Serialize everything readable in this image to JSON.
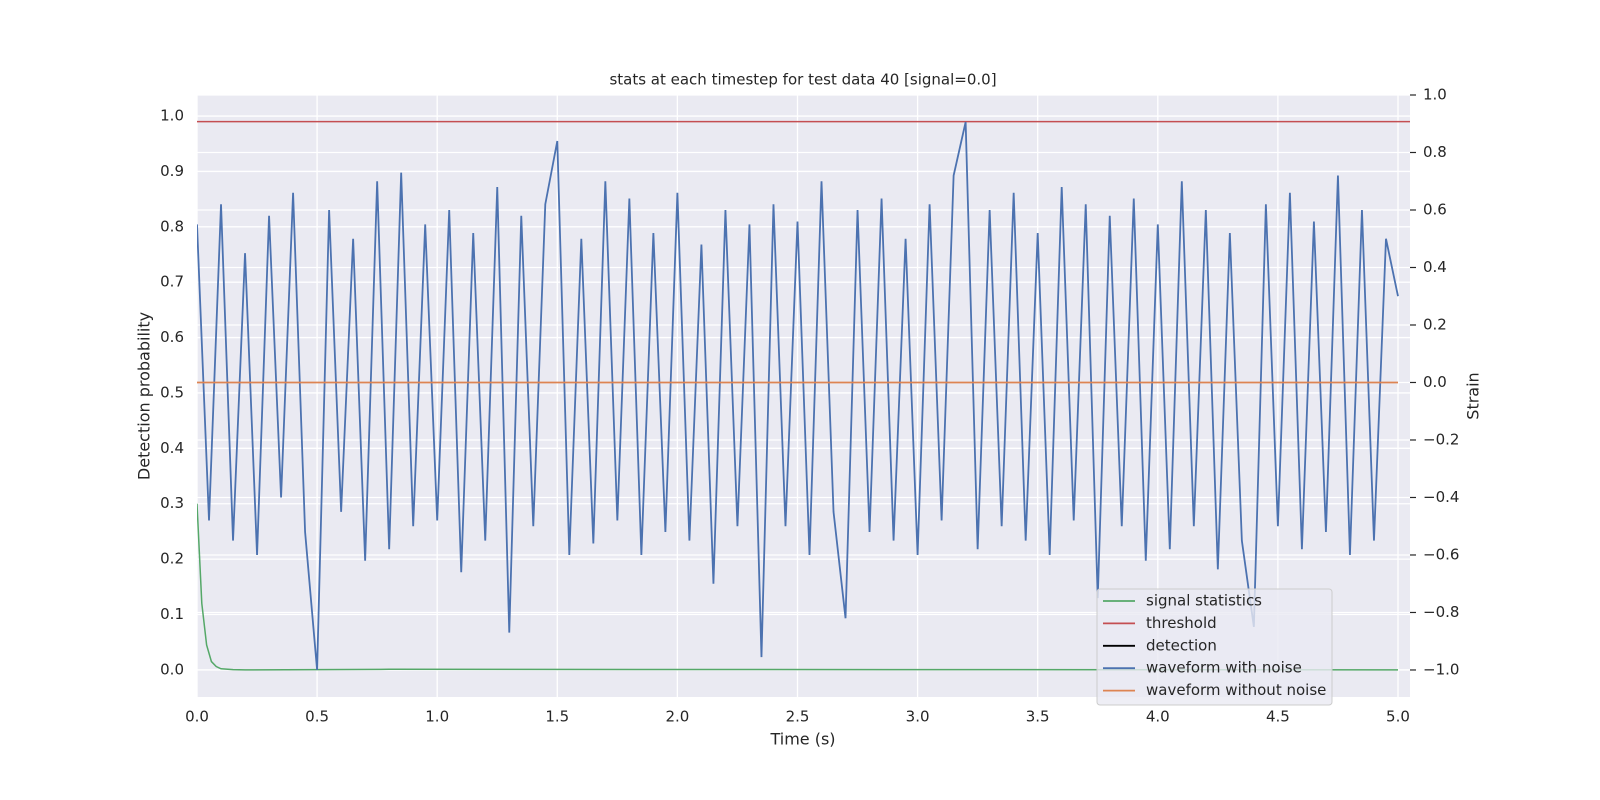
{
  "chart_data": {
    "type": "line",
    "title": "stats at each timestep for test data 40 [signal=0.0]",
    "x_label": "Time (s)",
    "y_label": "Detection probability",
    "y2_label": "Strain",
    "xlim": [
      0,
      5.05
    ],
    "ylim": [
      -0.049,
      1.038
    ],
    "y2lim": [
      -1.094,
      1.0
    ],
    "xticks": [
      {
        "value": 0,
        "label": "0.0"
      },
      0.5,
      {
        "value": 1,
        "label": "1.0"
      },
      1.5,
      {
        "value": 2,
        "label": "2.0"
      },
      2.5,
      {
        "value": 3,
        "label": "3.0"
      },
      3.5,
      {
        "value": 4,
        "label": "4.0"
      },
      4.5,
      {
        "value": 5,
        "label": "5.0"
      }
    ],
    "yticks": [
      {
        "value": 0,
        "label": "0.0"
      },
      0.1,
      0.2,
      0.3,
      0.4,
      0.5,
      0.6,
      0.7,
      0.8,
      0.9,
      {
        "value": 1,
        "label": "1.0"
      }
    ],
    "y2ticks": [
      {
        "value": -1,
        "label": "−1.0"
      },
      {
        "value": -0.8,
        "label": "−0.8"
      },
      {
        "value": -0.6,
        "label": "−0.6"
      },
      {
        "value": -0.4,
        "label": "−0.4"
      },
      {
        "value": -0.2,
        "label": "−0.2"
      },
      {
        "value": 0,
        "label": "0.0"
      },
      0.2,
      0.4,
      0.6,
      0.8,
      {
        "value": 1,
        "label": "1.0"
      }
    ],
    "grid": true,
    "legend": "lower right",
    "series": [
      {
        "name": "signal statistics",
        "color": "#55a868",
        "x": [
          0,
          0.02,
          0.04,
          0.06,
          0.08,
          0.1,
          0.15,
          0.2,
          0.8,
          5.0
        ],
        "values": [
          0.3,
          0.12,
          0.045,
          0.015,
          0.006,
          0.002,
          0.0005,
          0,
          0.001,
          0
        ]
      },
      {
        "name": "threshold",
        "color": "#c44e52",
        "x": [
          0,
          5.05
        ],
        "values": [
          0.99,
          0.99
        ]
      },
      {
        "name": "detection",
        "color": "#000000",
        "x": [],
        "values": []
      },
      {
        "name": "waveform with noise",
        "color": "#4c72b0",
        "axis": "y2",
        "x": [
          0,
          0.05,
          0.1,
          0.15,
          0.2,
          0.25,
          0.3,
          0.35,
          0.4,
          0.45,
          0.5,
          0.55,
          0.6,
          0.65,
          0.7,
          0.75,
          0.8,
          0.85,
          0.9,
          0.95,
          1.0,
          1.05,
          1.1,
          1.15,
          1.2,
          1.25,
          1.3,
          1.35,
          1.4,
          1.45,
          1.5,
          1.55,
          1.6,
          1.65,
          1.7,
          1.75,
          1.8,
          1.85,
          1.9,
          1.95,
          2.0,
          2.05,
          2.1,
          2.15,
          2.2,
          2.25,
          2.3,
          2.35,
          2.4,
          2.45,
          2.5,
          2.55,
          2.6,
          2.65,
          2.7,
          2.75,
          2.8,
          2.85,
          2.9,
          2.95,
          3.0,
          3.05,
          3.1,
          3.15,
          3.2,
          3.25,
          3.3,
          3.35,
          3.4,
          3.45,
          3.5,
          3.55,
          3.6,
          3.65,
          3.7,
          3.75,
          3.8,
          3.85,
          3.9,
          3.95,
          4.0,
          4.05,
          4.1,
          4.15,
          4.2,
          4.25,
          4.3,
          4.35,
          4.4,
          4.45,
          4.5,
          4.55,
          4.6,
          4.65,
          4.7,
          4.75,
          4.8,
          4.85,
          4.9,
          4.95,
          5.0
        ],
        "values": [
          0.55,
          -0.48,
          0.62,
          -0.55,
          0.45,
          -0.6,
          0.58,
          -0.4,
          0.66,
          -0.52,
          -1.0,
          0.6,
          -0.45,
          0.5,
          -0.62,
          0.7,
          -0.58,
          0.73,
          -0.5,
          0.55,
          -0.48,
          0.6,
          -0.66,
          0.52,
          -0.55,
          0.68,
          -0.87,
          0.58,
          -0.5,
          0.62,
          0.84,
          -0.6,
          0.5,
          -0.56,
          0.7,
          -0.48,
          0.64,
          -0.6,
          0.52,
          -0.52,
          0.66,
          -0.55,
          0.48,
          -0.7,
          0.6,
          -0.5,
          0.55,
          -0.955,
          0.62,
          -0.5,
          0.56,
          -0.6,
          0.7,
          -0.45,
          -0.82,
          0.6,
          -0.52,
          0.64,
          -0.55,
          0.5,
          -0.6,
          0.62,
          -0.48,
          0.72,
          0.906,
          -0.58,
          0.6,
          -0.5,
          0.66,
          -0.55,
          0.52,
          -0.6,
          0.68,
          -0.48,
          0.62,
          -0.75,
          0.58,
          -0.5,
          0.64,
          -0.62,
          0.55,
          -0.58,
          0.7,
          -0.5,
          0.6,
          -0.65,
          0.52,
          -0.55,
          -0.85,
          0.62,
          -0.5,
          0.66,
          -0.58,
          0.56,
          -0.52,
          0.72,
          -0.6,
          0.6,
          -0.55,
          0.5,
          0.3
        ]
      },
      {
        "name": "waveform without noise",
        "color": "#dd8452",
        "axis": "y2",
        "x": [
          0,
          5.0
        ],
        "values": [
          0,
          0
        ]
      }
    ]
  }
}
